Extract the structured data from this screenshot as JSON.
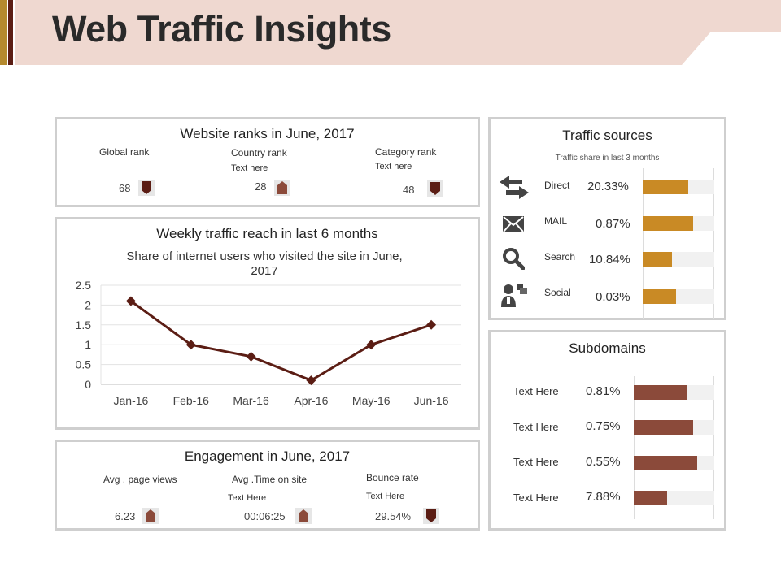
{
  "header": {
    "title": "Web Traffic Insights"
  },
  "colors": {
    "header_band": "#efd8d0",
    "dark_arrow": "#5b1d14",
    "up_arrow": "#8b4a3a",
    "line": "#5b1d14",
    "source_bar": "#c98a25",
    "subdomain_bar": "#8b4a3a"
  },
  "ranks": {
    "title": "Website ranks in June, 2017",
    "items": [
      {
        "label": "Global rank",
        "sub": "",
        "value": "68",
        "arrow": "down"
      },
      {
        "label": "Country rank",
        "sub": "Text here",
        "value": "28",
        "arrow": "up"
      },
      {
        "label": "Category rank",
        "sub": "Text here",
        "value": "48",
        "arrow": "down"
      }
    ]
  },
  "reach": {
    "title": "Weekly traffic reach in last 6 months"
  },
  "chart_data": {
    "type": "line",
    "title": "Share of internet users who visited the site in June, 2017",
    "categories": [
      "Jan-16",
      "Feb-16",
      "Mar-16",
      "Apr-16",
      "May-16",
      "Jun-16"
    ],
    "values": [
      2.1,
      1.0,
      0.7,
      0.1,
      1.0,
      1.5
    ],
    "ylim": [
      0,
      2.5
    ],
    "yticks": [
      "0",
      "0.5",
      "1",
      "1.5",
      "2",
      "2.5"
    ],
    "grid": true,
    "marker": "diamond"
  },
  "engagement": {
    "title": "Engagement in June, 2017",
    "items": [
      {
        "label": "Avg . page views",
        "sub": "",
        "value": "6.23",
        "arrow": "up"
      },
      {
        "label": "Avg .Time on site",
        "sub": "Text Here",
        "value": "00:06:25",
        "arrow": "up"
      },
      {
        "label": "Bounce rate",
        "sub": "Text Here",
        "value": "29.54%",
        "arrow": "down"
      }
    ]
  },
  "sources": {
    "title": "Traffic sources",
    "subtitle": "Traffic share in last 3 months",
    "items": [
      {
        "label": "Direct",
        "value": "20.33%",
        "icon": "arrows-exchange-icon",
        "fill": 0.64
      },
      {
        "label": "MAIL",
        "value": "0.87%",
        "icon": "mail-icon",
        "fill": 0.7
      },
      {
        "label": "Search",
        "value": "10.84%",
        "icon": "search-icon",
        "fill": 0.41
      },
      {
        "label": "Social",
        "value": "0.03%",
        "icon": "social-user-icon",
        "fill": 0.47
      }
    ]
  },
  "subdomains": {
    "title": "Subdomains",
    "items": [
      {
        "label": "Text Here",
        "value": "0.81%",
        "fill": 0.67
      },
      {
        "label": "Text Here",
        "value": "0.75%",
        "fill": 0.74
      },
      {
        "label": "Text Here",
        "value": "0.55%",
        "fill": 0.79
      },
      {
        "label": "Text Here",
        "value": "7.88%",
        "fill": 0.41
      }
    ]
  }
}
